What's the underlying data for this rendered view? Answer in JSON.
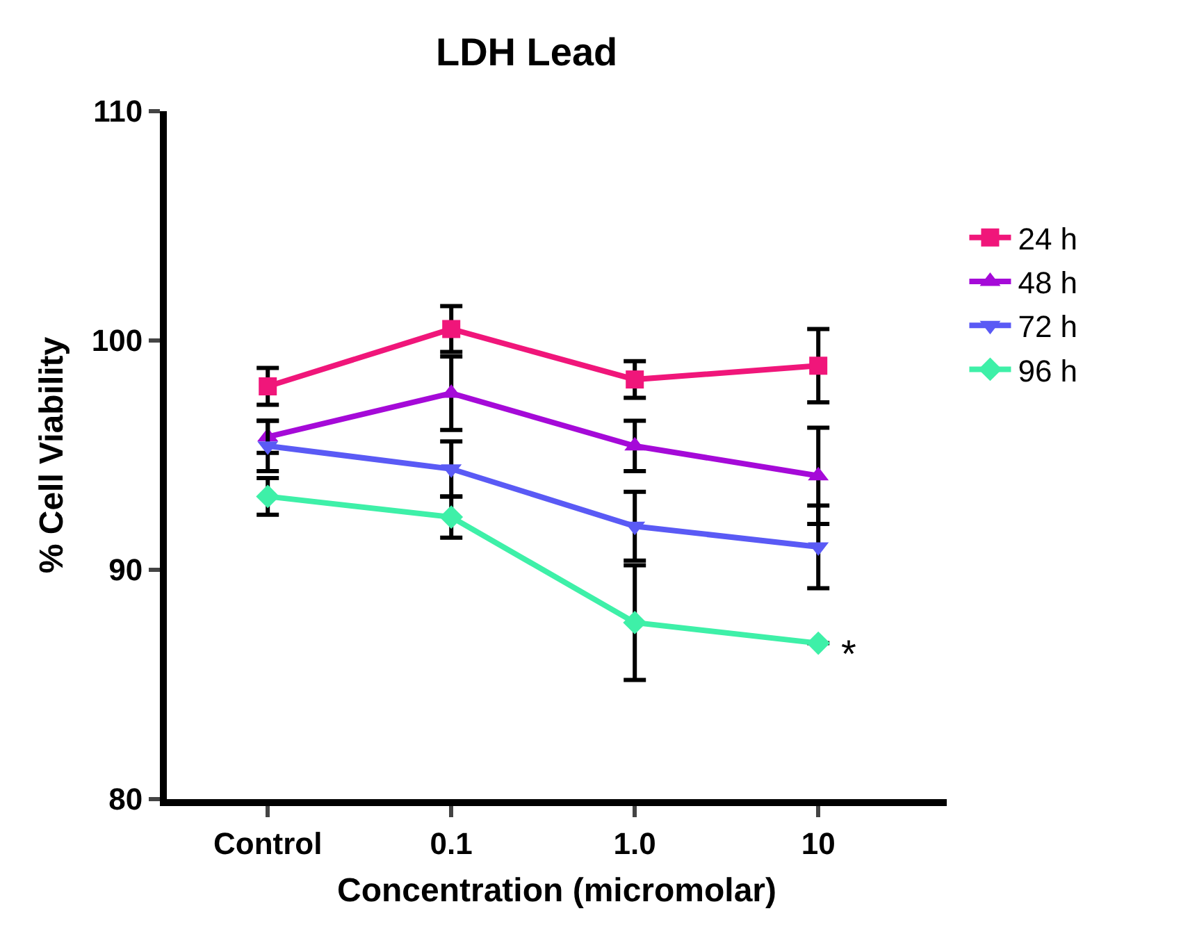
{
  "chart_data": {
    "type": "line",
    "title": "LDH Lead",
    "xlabel": "Concentration (micromolar)",
    "ylabel": "% Cell Viability",
    "categories": [
      "Control",
      "0.1",
      "1.0",
      "10"
    ],
    "series": [
      {
        "name": "24 h",
        "color": "#f0167a",
        "marker": "square",
        "values": [
          98.0,
          100.5,
          98.3,
          98.9
        ],
        "errors": [
          0.8,
          1.0,
          0.8,
          1.6
        ]
      },
      {
        "name": "48 h",
        "color": "#a50ad8",
        "marker": "triangle",
        "values": [
          95.8,
          97.7,
          95.4,
          94.1
        ],
        "errors": [
          0.7,
          1.6,
          1.1,
          2.1
        ]
      },
      {
        "name": "72 h",
        "color": "#5a5af5",
        "marker": "triangle-down",
        "values": [
          95.4,
          94.4,
          91.9,
          91.0
        ],
        "errors": [
          1.1,
          1.2,
          1.5,
          1.8
        ]
      },
      {
        "name": "96 h",
        "color": "#3ef0a8",
        "marker": "diamond",
        "values": [
          93.2,
          92.3,
          87.7,
          86.8
        ],
        "errors": [
          0.8,
          0.9,
          2.5,
          null
        ]
      }
    ],
    "annotations": [
      {
        "text": "*",
        "x": "10",
        "y": 86.8
      }
    ],
    "ylim": [
      80,
      110
    ],
    "yticks": [
      80,
      90,
      100,
      110
    ],
    "legend": "right",
    "line_style": "solid"
  }
}
